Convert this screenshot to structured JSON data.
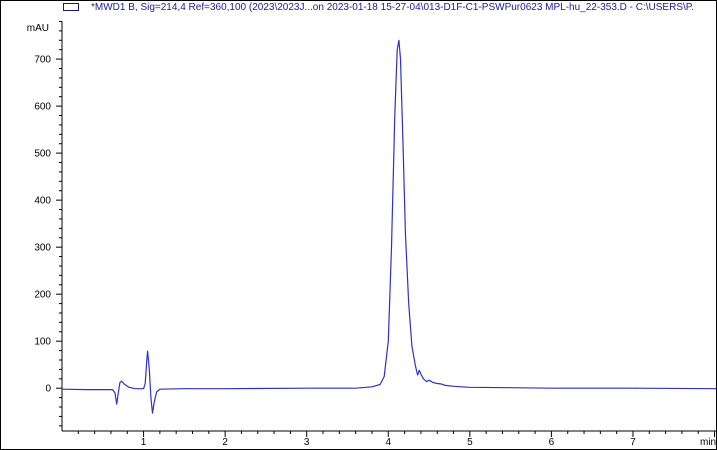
{
  "chart_data": {
    "type": "line",
    "title": "",
    "legend": {
      "label": "*MWD1 B, Sig=214,4 Ref=360,100 (2023\\2023J...on 2023-01-18 15-27-04\\013-D1F-C1-PSWPur0623 MPL-hu_22-353.D - C:\\USERS\\P.",
      "placement": "top"
    },
    "xlabel": "min",
    "ylabel": "mAU",
    "xlim": [
      0,
      8.03
    ],
    "ylim": [
      -91,
      781
    ],
    "x_ticks": [
      1,
      2,
      3,
      4,
      5,
      6,
      7
    ],
    "x_minor_step": 0.2,
    "y_ticks": [
      0,
      100,
      200,
      300,
      400,
      500,
      600,
      700
    ],
    "y_minor_step": 20,
    "grid": false,
    "line_color": "#3030c8",
    "series": [
      {
        "points": [
          [
            0.0,
            -2
          ],
          [
            0.3,
            -3
          ],
          [
            0.5,
            -3
          ],
          [
            0.62,
            -3
          ],
          [
            0.65,
            -10
          ],
          [
            0.67,
            -34
          ],
          [
            0.69,
            -10
          ],
          [
            0.71,
            12
          ],
          [
            0.73,
            15
          ],
          [
            0.77,
            8
          ],
          [
            0.82,
            2
          ],
          [
            0.9,
            -1
          ],
          [
            1.0,
            -1
          ],
          [
            1.02,
            10
          ],
          [
            1.04,
            60
          ],
          [
            1.05,
            79
          ],
          [
            1.07,
            40
          ],
          [
            1.09,
            -20
          ],
          [
            1.11,
            -53
          ],
          [
            1.13,
            -30
          ],
          [
            1.16,
            -8
          ],
          [
            1.2,
            -2
          ],
          [
            1.5,
            -1
          ],
          [
            2.0,
            -1
          ],
          [
            3.0,
            0
          ],
          [
            3.6,
            0
          ],
          [
            3.8,
            3
          ],
          [
            3.9,
            8
          ],
          [
            3.95,
            25
          ],
          [
            4.0,
            100
          ],
          [
            4.04,
            300
          ],
          [
            4.08,
            580
          ],
          [
            4.11,
            720
          ],
          [
            4.13,
            740
          ],
          [
            4.15,
            700
          ],
          [
            4.18,
            520
          ],
          [
            4.21,
            330
          ],
          [
            4.25,
            180
          ],
          [
            4.29,
            90
          ],
          [
            4.33,
            50
          ],
          [
            4.36,
            28
          ],
          [
            4.38,
            38
          ],
          [
            4.4,
            30
          ],
          [
            4.43,
            20
          ],
          [
            4.47,
            14
          ],
          [
            4.5,
            17
          ],
          [
            4.55,
            12
          ],
          [
            4.6,
            10
          ],
          [
            4.65,
            9
          ],
          [
            4.7,
            6
          ],
          [
            4.8,
            4
          ],
          [
            5.0,
            2
          ],
          [
            5.5,
            1
          ],
          [
            6.0,
            0
          ],
          [
            7.0,
            0
          ],
          [
            8.03,
            -1
          ]
        ]
      }
    ]
  }
}
